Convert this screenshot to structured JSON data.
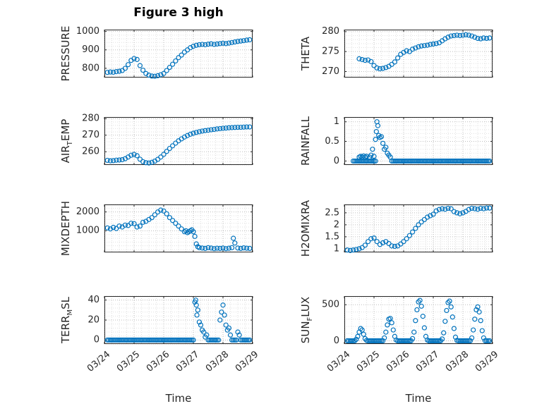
{
  "figure": {
    "title": "Figure 3 high",
    "xlabel": "Time",
    "marker_color": "#0072BD",
    "axis_color": "#262626",
    "grid_major_color": "#bdbdbd",
    "grid_minor_color": "#e0e0e0",
    "xlim": [
      0,
      5
    ],
    "x_minor_step": 0.25,
    "xticks": [
      {
        "v": 0,
        "label": "03/24"
      },
      {
        "v": 1,
        "label": "03/25"
      },
      {
        "v": 2,
        "label": "03/26"
      },
      {
        "v": 3,
        "label": "03/27"
      },
      {
        "v": 4,
        "label": "03/28"
      },
      {
        "v": 5,
        "label": "03/29"
      }
    ]
  },
  "chart_data": [
    {
      "type": "scatter",
      "name": "PRESSURE",
      "ylabel_segments": [
        {
          "text": "PRESSURE"
        }
      ],
      "row": 0,
      "col": 0,
      "ylim": [
        750,
        1010
      ],
      "yticks": [
        {
          "v": 800,
          "label": "800"
        },
        {
          "v": 900,
          "label": "900"
        },
        {
          "v": 1000,
          "label": "1000"
        }
      ],
      "x": [
        0.1,
        0.2,
        0.3,
        0.4,
        0.5,
        0.6,
        0.7,
        0.8,
        0.9,
        1.0,
        1.1,
        1.2,
        1.3,
        1.4,
        1.5,
        1.6,
        1.7,
        1.8,
        1.9,
        2.0,
        2.1,
        2.2,
        2.3,
        2.4,
        2.5,
        2.6,
        2.7,
        2.8,
        2.9,
        3.0,
        3.1,
        3.2,
        3.3,
        3.4,
        3.5,
        3.6,
        3.7,
        3.8,
        3.9,
        4.0,
        4.1,
        4.2,
        4.3,
        4.4,
        4.5,
        4.6,
        4.7,
        4.8,
        4.9
      ],
      "y": [
        778,
        780,
        779,
        782,
        784,
        788,
        800,
        820,
        843,
        853,
        848,
        815,
        790,
        772,
        763,
        758,
        757,
        760,
        765,
        772,
        788,
        805,
        822,
        840,
        858,
        872,
        888,
        900,
        912,
        920,
        925,
        928,
        930,
        928,
        931,
        933,
        930,
        932,
        934,
        936,
        934,
        937,
        940,
        943,
        946,
        948,
        950,
        953,
        955
      ]
    },
    {
      "type": "scatter",
      "name": "THETA",
      "ylabel_segments": [
        {
          "text": "THETA"
        }
      ],
      "row": 0,
      "col": 1,
      "ylim": [
        268.5,
        280.5
      ],
      "yticks": [
        {
          "v": 270,
          "label": "270"
        },
        {
          "v": 275,
          "label": "275"
        },
        {
          "v": 280,
          "label": "280"
        }
      ],
      "x": [
        0.5,
        0.6,
        0.7,
        0.8,
        0.9,
        1.0,
        1.1,
        1.2,
        1.3,
        1.4,
        1.5,
        1.6,
        1.7,
        1.8,
        1.9,
        2.0,
        2.1,
        2.2,
        2.3,
        2.4,
        2.5,
        2.6,
        2.7,
        2.8,
        2.9,
        3.0,
        3.1,
        3.2,
        3.3,
        3.4,
        3.5,
        3.6,
        3.7,
        3.8,
        3.9,
        4.0,
        4.1,
        4.2,
        4.3,
        4.4,
        4.5,
        4.6,
        4.7,
        4.8,
        4.9
      ],
      "y": [
        273.2,
        273.0,
        272.8,
        272.9,
        272.5,
        271.5,
        270.9,
        270.7,
        270.8,
        271.0,
        271.3,
        271.8,
        272.4,
        273.4,
        274.3,
        274.8,
        275.2,
        275.0,
        275.6,
        275.9,
        276.2,
        276.4,
        276.5,
        276.6,
        276.8,
        276.9,
        277.0,
        277.2,
        277.7,
        278.2,
        278.6,
        278.9,
        279.0,
        279.1,
        279.0,
        279.1,
        279.2,
        279.1,
        278.9,
        278.6,
        278.3,
        278.2,
        278.4,
        278.3,
        278.4
      ]
    },
    {
      "type": "scatter",
      "name": "AIR_TEMP",
      "ylabel_segments": [
        {
          "text": "AIR"
        },
        {
          "text": "T",
          "sub": true
        },
        {
          "text": "EMP"
        }
      ],
      "row": 1,
      "col": 0,
      "ylim": [
        252,
        281
      ],
      "yticks": [
        {
          "v": 260,
          "label": "260"
        },
        {
          "v": 270,
          "label": "270"
        },
        {
          "v": 280,
          "label": "280"
        }
      ],
      "x": [
        0.1,
        0.2,
        0.3,
        0.4,
        0.5,
        0.6,
        0.7,
        0.8,
        0.9,
        1.0,
        1.1,
        1.2,
        1.3,
        1.4,
        1.5,
        1.6,
        1.7,
        1.8,
        1.9,
        2.0,
        2.1,
        2.2,
        2.3,
        2.4,
        2.5,
        2.6,
        2.7,
        2.8,
        2.9,
        3.0,
        3.1,
        3.2,
        3.3,
        3.4,
        3.5,
        3.6,
        3.7,
        3.8,
        3.9,
        4.0,
        4.1,
        4.2,
        4.3,
        4.4,
        4.5,
        4.6,
        4.7,
        4.8,
        4.9
      ],
      "y": [
        254.8,
        254.5,
        254.6,
        254.9,
        255.0,
        255.2,
        255.8,
        256.8,
        257.9,
        258.4,
        257.6,
        255.5,
        254.0,
        253.4,
        253.2,
        253.6,
        254.3,
        255.4,
        256.8,
        258.4,
        260.2,
        262.0,
        263.6,
        265.2,
        266.6,
        267.8,
        268.9,
        269.8,
        270.6,
        271.2,
        271.7,
        272.1,
        272.5,
        272.8,
        273.0,
        273.3,
        273.5,
        273.8,
        274.0,
        274.2,
        274.3,
        274.5,
        274.6,
        274.7,
        274.8,
        274.8,
        274.9,
        275.0,
        275.0
      ]
    },
    {
      "type": "scatter",
      "name": "RAINFALL",
      "ylabel_segments": [
        {
          "text": "RAINFALL"
        }
      ],
      "row": 1,
      "col": 1,
      "ylim": [
        -0.1,
        1.12
      ],
      "yticks": [
        {
          "v": 0,
          "label": "0"
        },
        {
          "v": 0.5,
          "label": "0.5"
        },
        {
          "v": 1,
          "label": "1"
        }
      ],
      "x": [
        0.5,
        0.55,
        0.6,
        0.65,
        0.7,
        0.75,
        0.85,
        0.9,
        0.95,
        1.0,
        1.05,
        1.08,
        1.1,
        1.13,
        1.16,
        1.2,
        1.25,
        1.3,
        1.35,
        1.4,
        1.45,
        1.5,
        1.55
      ],
      "y": [
        0.1,
        0.12,
        0.1,
        0.13,
        0.1,
        0.12,
        0.1,
        0.15,
        0.3,
        0.12,
        0.55,
        0.75,
        1.0,
        0.9,
        0.65,
        0.6,
        0.62,
        0.45,
        0.3,
        0.35,
        0.2,
        0.15,
        0.1
      ],
      "runs": [
        {
          "x_from": 0.3,
          "x_to": 1.05,
          "x_step": 0.05,
          "y": 0
        },
        {
          "x_from": 1.6,
          "x_to": 4.9,
          "x_step": 0.05,
          "y": 0
        }
      ]
    },
    {
      "type": "scatter",
      "name": "MIXDEPTH",
      "ylabel_segments": [
        {
          "text": "MIXDEPTH"
        }
      ],
      "row": 2,
      "col": 0,
      "ylim": [
        -150,
        2400
      ],
      "yticks": [
        {
          "v": 1000,
          "label": "1000"
        },
        {
          "v": 2000,
          "label": "2000"
        }
      ],
      "x": [
        0.1,
        0.2,
        0.3,
        0.4,
        0.5,
        0.6,
        0.7,
        0.8,
        0.9,
        1.0,
        1.1,
        1.2,
        1.3,
        1.4,
        1.5,
        1.6,
        1.7,
        1.8,
        1.9,
        2.0,
        2.1,
        2.2,
        2.3,
        2.4,
        2.5,
        2.6,
        2.7,
        2.75,
        2.8,
        2.85,
        2.9,
        2.95,
        3.0,
        3.05,
        3.1,
        3.15,
        3.2,
        3.3,
        3.4,
        3.5,
        3.6,
        3.7,
        3.8,
        3.9,
        4.0,
        4.1,
        4.2,
        4.3,
        4.35,
        4.4,
        4.5,
        4.6,
        4.7,
        4.8,
        4.9
      ],
      "y": [
        1150,
        1100,
        1180,
        1120,
        1250,
        1200,
        1300,
        1280,
        1400,
        1380,
        1200,
        1250,
        1450,
        1500,
        1600,
        1700,
        1850,
        2000,
        2100,
        2050,
        1900,
        1700,
        1550,
        1400,
        1250,
        1100,
        950,
        1000,
        900,
        950,
        1000,
        1050,
        950,
        700,
        300,
        150,
        100,
        80,
        60,
        100,
        80,
        50,
        70,
        60,
        80,
        50,
        70,
        100,
        600,
        350,
        80,
        60,
        90,
        70,
        60
      ]
    },
    {
      "type": "scatter",
      "name": "H2OMIXRA",
      "ylabel_segments": [
        {
          "text": "H2OMIXRA"
        }
      ],
      "row": 2,
      "col": 1,
      "ylim": [
        0.85,
        2.85
      ],
      "yticks": [
        {
          "v": 1,
          "label": "1"
        },
        {
          "v": 1.5,
          "label": "1.5"
        },
        {
          "v": 2,
          "label": "2"
        },
        {
          "v": 2.5,
          "label": "2.5"
        }
      ],
      "x": [
        0.1,
        0.2,
        0.3,
        0.4,
        0.5,
        0.6,
        0.7,
        0.8,
        0.9,
        1.0,
        1.1,
        1.2,
        1.3,
        1.4,
        1.5,
        1.6,
        1.7,
        1.8,
        1.9,
        2.0,
        2.1,
        2.2,
        2.3,
        2.4,
        2.5,
        2.6,
        2.7,
        2.8,
        2.9,
        3.0,
        3.1,
        3.2,
        3.3,
        3.4,
        3.5,
        3.6,
        3.7,
        3.8,
        3.9,
        4.0,
        4.1,
        4.2,
        4.3,
        4.4,
        4.5,
        4.6,
        4.7,
        4.8,
        4.9
      ],
      "y": [
        0.95,
        0.93,
        0.95,
        0.97,
        1.0,
        1.05,
        1.15,
        1.3,
        1.42,
        1.45,
        1.3,
        1.18,
        1.25,
        1.3,
        1.22,
        1.12,
        1.1,
        1.12,
        1.2,
        1.3,
        1.42,
        1.55,
        1.7,
        1.85,
        2.0,
        2.12,
        2.22,
        2.32,
        2.38,
        2.44,
        2.58,
        2.64,
        2.67,
        2.65,
        2.69,
        2.67,
        2.55,
        2.5,
        2.46,
        2.5,
        2.56,
        2.64,
        2.69,
        2.67,
        2.65,
        2.69,
        2.67,
        2.7,
        2.7
      ]
    },
    {
      "type": "scatter",
      "name": "TERR_MSL",
      "ylabel_segments": [
        {
          "text": "TERR"
        },
        {
          "text": "M",
          "sub": true
        },
        {
          "text": "SL"
        }
      ],
      "row": 3,
      "col": 0,
      "ylim": [
        -4,
        44
      ],
      "yticks": [
        {
          "v": 0,
          "label": "0"
        },
        {
          "v": 20,
          "label": "20"
        },
        {
          "v": 40,
          "label": "40"
        }
      ],
      "x": [
        3.05,
        3.08,
        3.1,
        3.12,
        3.15,
        3.2,
        3.25,
        3.3,
        3.35,
        3.4,
        3.45,
        3.9,
        3.95,
        4.0,
        4.05,
        4.1,
        4.15,
        4.2,
        4.25,
        4.5,
        4.55
      ],
      "y": [
        38,
        40,
        35,
        25,
        30,
        18,
        15,
        10,
        8,
        3,
        5,
        20,
        28,
        35,
        25,
        15,
        10,
        12,
        5,
        8,
        5
      ],
      "runs": [
        {
          "x_from": 0.1,
          "x_to": 3.0,
          "x_step": 0.05,
          "y": 0
        },
        {
          "x_from": 3.5,
          "x_to": 3.85,
          "x_step": 0.05,
          "y": 0
        },
        {
          "x_from": 4.3,
          "x_to": 4.45,
          "x_step": 0.05,
          "y": 0
        },
        {
          "x_from": 4.6,
          "x_to": 4.9,
          "x_step": 0.05,
          "y": 0
        }
      ]
    },
    {
      "type": "scatter",
      "name": "SUN_FLUX",
      "ylabel_segments": [
        {
          "text": "SUN"
        },
        {
          "text": "F",
          "sub": true
        },
        {
          "text": "LUX"
        }
      ],
      "row": 3,
      "col": 1,
      "ylim": [
        -45,
        620
      ],
      "yticks": [
        {
          "v": 0,
          "label": "0"
        },
        {
          "v": 500,
          "label": "500"
        }
      ],
      "x": [
        0.4,
        0.45,
        0.5,
        0.55,
        0.6,
        0.65,
        0.7,
        0.75,
        1.35,
        1.4,
        1.45,
        1.5,
        1.55,
        1.6,
        1.65,
        1.7,
        1.75,
        2.3,
        2.35,
        2.4,
        2.45,
        2.5,
        2.55,
        2.6,
        2.65,
        2.7,
        2.75,
        2.8,
        3.3,
        3.35,
        3.4,
        3.45,
        3.5,
        3.55,
        3.6,
        3.65,
        3.7,
        3.75,
        3.8,
        4.3,
        4.35,
        4.4,
        4.45,
        4.5,
        4.55,
        4.6,
        4.65,
        4.7
      ],
      "y": [
        20,
        60,
        120,
        170,
        150,
        90,
        30,
        5,
        40,
        120,
        220,
        300,
        310,
        250,
        150,
        60,
        10,
        30,
        120,
        280,
        430,
        540,
        560,
        480,
        340,
        180,
        60,
        10,
        25,
        110,
        270,
        420,
        530,
        550,
        470,
        330,
        170,
        50,
        5,
        40,
        150,
        300,
        430,
        470,
        400,
        280,
        140,
        40
      ],
      "runs": [
        {
          "x_from": 0.1,
          "x_to": 0.35,
          "x_step": 0.05,
          "y": 0
        },
        {
          "x_from": 0.8,
          "x_to": 1.3,
          "x_step": 0.05,
          "y": 0
        },
        {
          "x_from": 1.8,
          "x_to": 2.25,
          "x_step": 0.05,
          "y": 0
        },
        {
          "x_from": 2.85,
          "x_to": 3.25,
          "x_step": 0.05,
          "y": 0
        },
        {
          "x_from": 3.85,
          "x_to": 4.25,
          "x_step": 0.05,
          "y": 0
        },
        {
          "x_from": 4.75,
          "x_to": 4.9,
          "x_step": 0.05,
          "y": 0
        }
      ]
    }
  ]
}
